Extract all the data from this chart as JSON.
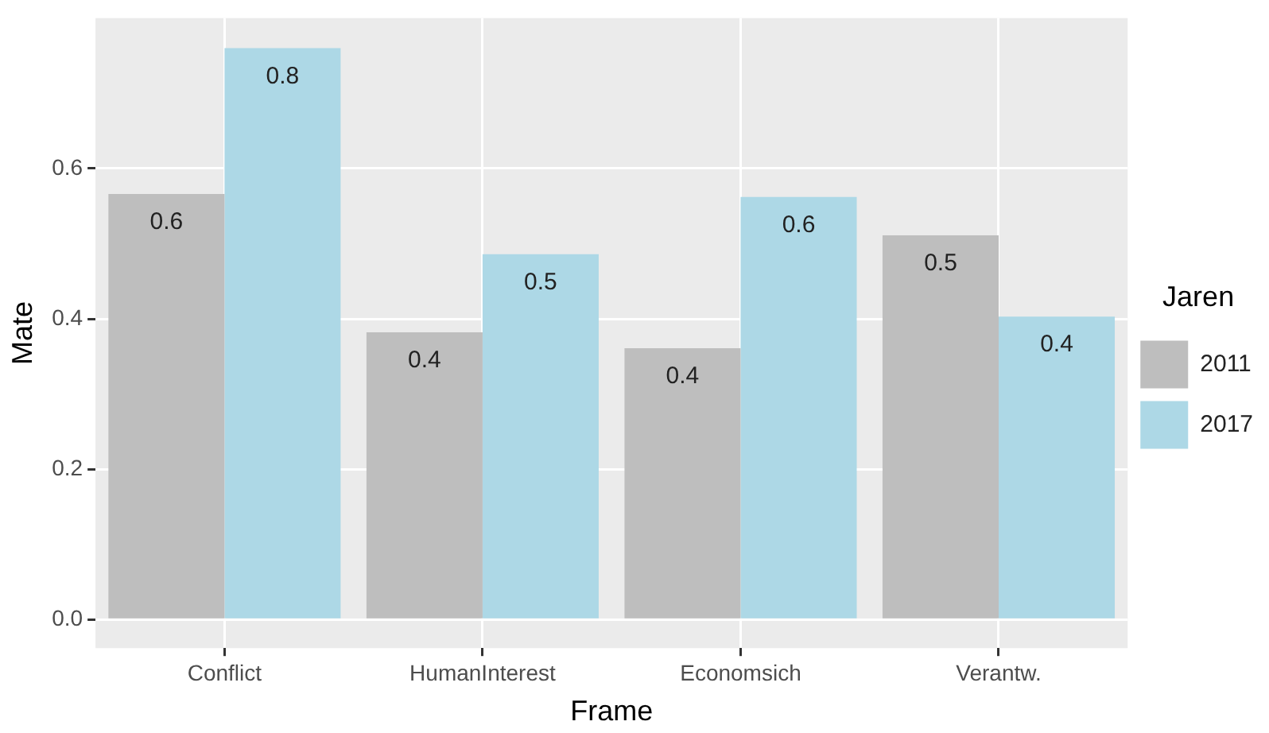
{
  "chart_data": {
    "type": "bar",
    "xlabel": "Frame",
    "ylabel": "Mate",
    "legend_title": "Jaren",
    "categories": [
      "Conflict",
      "HumanInterest",
      "Economsich",
      "Verantw."
    ],
    "series": [
      {
        "name": "2011",
        "color": "#bebebe",
        "values": [
          0.566,
          0.382,
          0.361,
          0.511
        ],
        "value_labels": [
          "0.6",
          "0.4",
          "0.4",
          "0.5"
        ]
      },
      {
        "name": "2017",
        "color": "#add8e6",
        "values": [
          0.76,
          0.486,
          0.562,
          0.403
        ],
        "value_labels": [
          "0.8",
          "0.5",
          "0.6",
          "0.4"
        ]
      }
    ],
    "ylim": [
      -0.038,
      0.8
    ],
    "yticks": [
      {
        "value": 0,
        "label": "0.0"
      },
      {
        "value": 0.2,
        "label": "0.2"
      },
      {
        "value": 0.4,
        "label": "0.4"
      },
      {
        "value": 0.6,
        "label": "0.6"
      }
    ],
    "grid": true,
    "legend": "right"
  }
}
